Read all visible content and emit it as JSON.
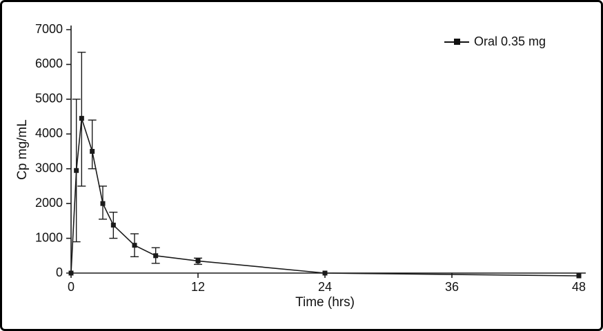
{
  "figure": {
    "legend_label": "Oral 0.35 mg"
  },
  "chart_data": {
    "type": "line",
    "title": "",
    "xlabel": "Time (hrs)",
    "ylabel": "Cp mg/mL",
    "xlim": [
      0,
      48
    ],
    "ylim": [
      0,
      7000
    ],
    "xticks": [
      0,
      12,
      24,
      36,
      48
    ],
    "yticks": [
      0,
      1000,
      2000,
      3000,
      4000,
      5000,
      6000,
      7000
    ],
    "grid": false,
    "legend_position": "top-right",
    "marker": "square",
    "color": "#1a1a1a",
    "series": [
      {
        "name": "Oral 0.35 mg",
        "x": [
          0,
          0.5,
          1,
          2,
          3,
          4,
          6,
          8,
          12,
          24,
          48
        ],
        "y": [
          0,
          2950,
          4450,
          3500,
          2000,
          1380,
          800,
          500,
          350,
          0,
          -80
        ],
        "y_err_low": [
          0,
          2050,
          1950,
          500,
          450,
          380,
          330,
          220,
          100,
          0,
          0
        ],
        "y_err_high": [
          0,
          2050,
          1900,
          900,
          500,
          370,
          330,
          230,
          80,
          0,
          0
        ]
      }
    ]
  }
}
